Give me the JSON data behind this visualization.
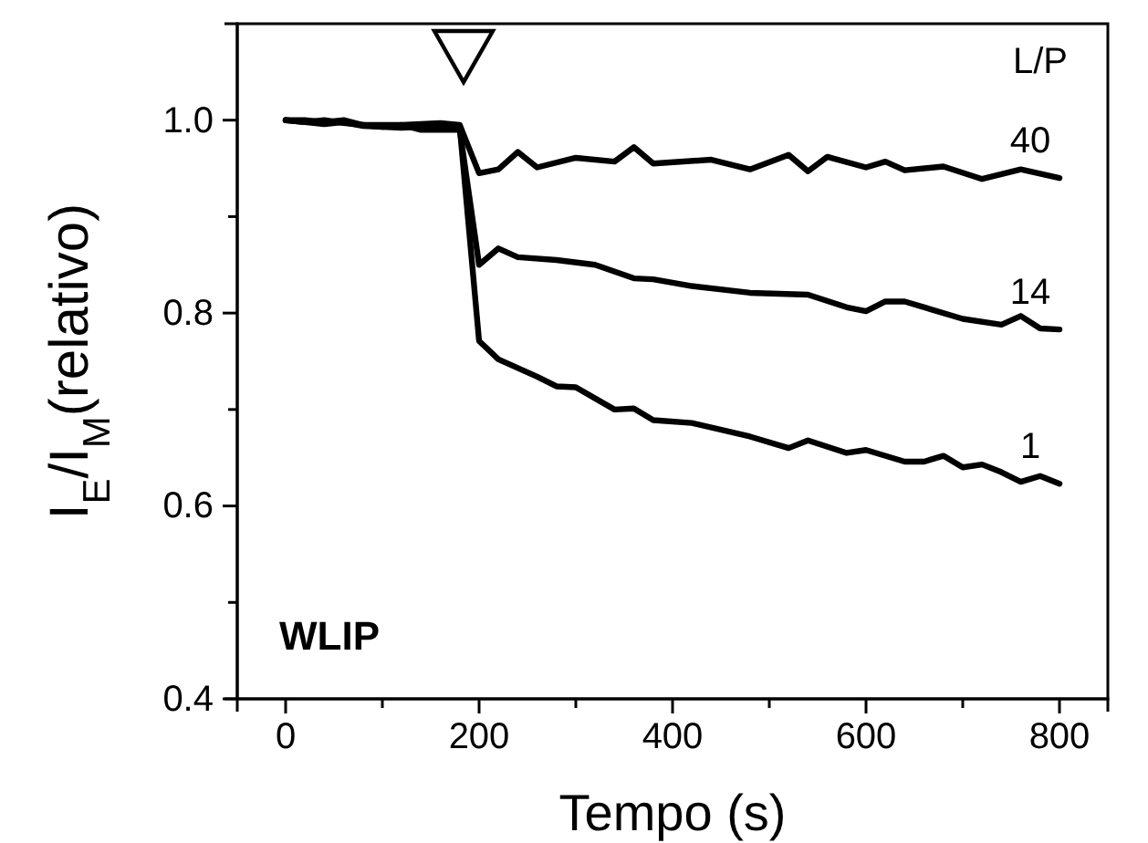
{
  "chart_data": {
    "type": "line",
    "xlabel": "Tempo (s)",
    "ylabel": "I$_{E}$/I$_{M}$(relativo)",
    "legend_title": "L/P",
    "xlim": [
      -50,
      850
    ],
    "xticks": [
      0,
      {
        "value": 100,
        "label": null
      },
      200,
      {
        "value": 300,
        "label": null
      },
      400,
      {
        "value": 500,
        "label": null
      },
      600,
      {
        "value": 700,
        "label": null
      },
      800
    ],
    "ylim": [
      0.4,
      1.1
    ],
    "yticks": [
      0.4,
      {
        "value": 0.5,
        "label": null
      },
      0.6,
      {
        "value": 0.7,
        "label": null
      },
      0.8,
      {
        "value": 0.9,
        "label": null
      },
      {
        "value": 1.0,
        "label": "1.0"
      }
    ],
    "grid": false,
    "legend": false,
    "marker": "none",
    "line_style": "solid",
    "annotations": [
      "WLIP"
    ],
    "series": [
      {
        "name": "40",
        "color": "#000000",
        "x": [
          0,
          20,
          40,
          60,
          80,
          100,
          120,
          140,
          160,
          180,
          200,
          220,
          240,
          260,
          300,
          340,
          360,
          380,
          440,
          480,
          520,
          540,
          560,
          600,
          620,
          640,
          680,
          720,
          760,
          800
        ],
        "values": [
          1.0,
          1.0,
          0.998,
          1.0,
          0.995,
          0.995,
          0.995,
          0.996,
          0.997,
          0.995,
          0.945,
          0.949,
          0.967,
          0.951,
          0.961,
          0.957,
          0.972,
          0.955,
          0.959,
          0.949,
          0.964,
          0.947,
          0.962,
          0.951,
          0.957,
          0.948,
          0.952,
          0.939,
          0.949,
          0.94
        ]
      },
      {
        "name": "14",
        "color": "#000000",
        "x": [
          0,
          20,
          40,
          60,
          80,
          100,
          120,
          140,
          160,
          180,
          200,
          220,
          240,
          280,
          320,
          360,
          380,
          420,
          480,
          540,
          580,
          600,
          620,
          640,
          700,
          740,
          760,
          780,
          800
        ],
        "values": [
          1.0,
          0.998,
          1.0,
          0.997,
          0.995,
          0.993,
          0.995,
          0.99,
          0.99,
          0.99,
          0.85,
          0.867,
          0.858,
          0.855,
          0.85,
          0.836,
          0.835,
          0.828,
          0.821,
          0.819,
          0.806,
          0.802,
          0.812,
          0.812,
          0.794,
          0.788,
          0.797,
          0.784,
          0.783
        ]
      },
      {
        "name": "1",
        "color": "#000000",
        "x": [
          0,
          20,
          40,
          60,
          80,
          100,
          120,
          140,
          160,
          180,
          200,
          220,
          260,
          280,
          300,
          340,
          360,
          380,
          420,
          480,
          520,
          540,
          580,
          600,
          640,
          660,
          680,
          700,
          720,
          740,
          760,
          780,
          800
        ],
        "values": [
          1.0,
          0.998,
          0.996,
          0.998,
          0.994,
          0.993,
          0.992,
          0.993,
          0.996,
          0.993,
          0.771,
          0.752,
          0.734,
          0.724,
          0.723,
          0.7,
          0.701,
          0.689,
          0.686,
          0.672,
          0.66,
          0.668,
          0.655,
          0.658,
          0.646,
          0.646,
          0.652,
          0.64,
          0.643,
          0.635,
          0.625,
          0.631,
          0.623
        ]
      }
    ]
  }
}
